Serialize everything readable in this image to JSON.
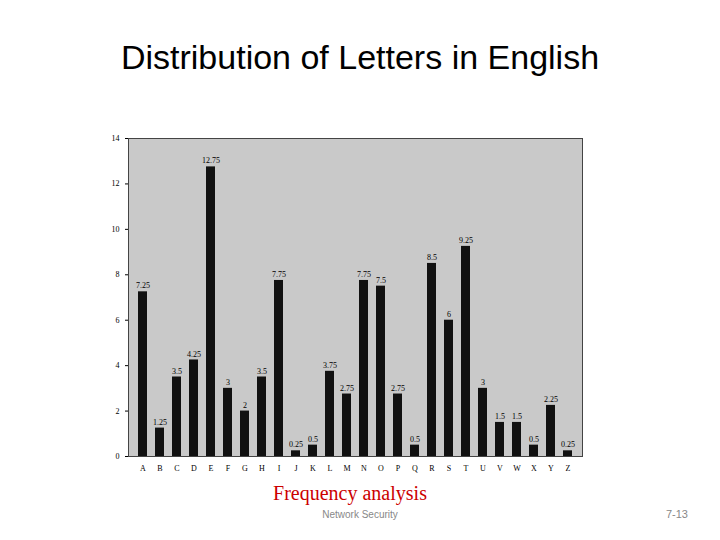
{
  "chart_data": {
    "type": "bar",
    "title": "Distribution of Letters in English",
    "categories": [
      "A",
      "B",
      "C",
      "D",
      "E",
      "F",
      "G",
      "H",
      "I",
      "J",
      "K",
      "L",
      "M",
      "N",
      "O",
      "P",
      "Q",
      "R",
      "S",
      "T",
      "U",
      "V",
      "W",
      "X",
      "Y",
      "Z"
    ],
    "values": [
      7.25,
      1.25,
      3.5,
      4.25,
      12.75,
      3,
      2,
      3.5,
      7.75,
      0.25,
      0.5,
      3.75,
      2.75,
      7.75,
      7.5,
      2.75,
      0.5,
      8.5,
      6,
      9.25,
      3,
      1.5,
      1.5,
      0.5,
      2.25,
      0.25
    ],
    "color": "#111111",
    "ylim": [
      0,
      14
    ],
    "yticks": [
      0,
      2,
      4,
      6,
      8,
      10,
      12,
      14
    ],
    "data_labels": true,
    "grid": false
  },
  "slide": {
    "caption": "Frequency analysis",
    "footer": "Network Security",
    "page_number": "7-13"
  }
}
